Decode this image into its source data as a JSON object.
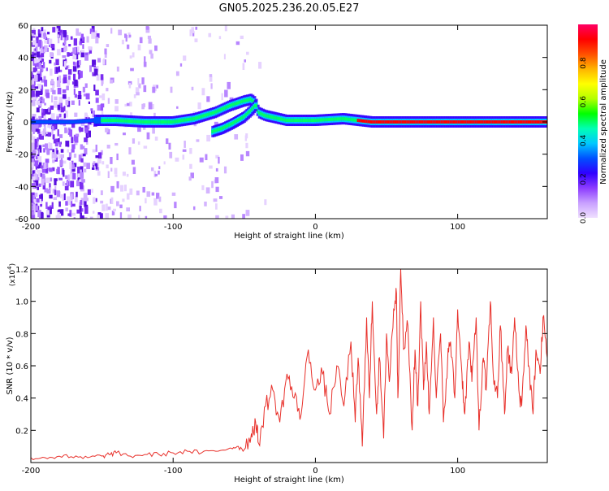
{
  "title": "GN05.2025.236.20.05.E27",
  "chart_data": [
    {
      "type": "heatmap",
      "xlabel": "Height of straight line (km)",
      "ylabel": "Frequency (Hz)",
      "xlim": [
        -200,
        163
      ],
      "ylim": [
        -60,
        60
      ],
      "xticks": [
        -200,
        -100,
        0,
        100
      ],
      "yticks": [
        60,
        40,
        20,
        0,
        -20,
        -40,
        -60
      ],
      "colorbar": {
        "label": "Normalized spectral amplitude",
        "range": [
          0.0,
          1.0
        ],
        "ticks": [
          "0.0",
          "0.2",
          "0.4",
          "0.6",
          "0.8"
        ],
        "colors": [
          "#f0e0ff",
          "#c8a0ff",
          "#8c3cff",
          "#3000ff",
          "#0050ff",
          "#00c8ff",
          "#00ffb4",
          "#00ff00",
          "#b4ff00",
          "#ffff00",
          "#ffb400",
          "#ff5000",
          "#ff0000",
          "#ff0064"
        ]
      },
      "ridge": {
        "x": [
          -200,
          -185,
          -170,
          -155,
          -140,
          -120,
          -100,
          -85,
          -70,
          -60,
          -50,
          -45,
          -42,
          -40,
          -35,
          -30,
          -20,
          -10,
          0,
          20,
          40,
          60,
          80,
          100,
          130,
          163
        ],
        "freq": [
          0,
          0,
          0,
          1,
          1,
          0,
          0,
          2,
          6,
          10,
          13,
          14,
          12,
          6,
          4,
          3,
          1,
          1,
          1,
          2,
          0,
          0,
          0,
          0,
          0,
          0
        ]
      },
      "secondary_ridge": {
        "x": [
          -72,
          -65,
          -58,
          -50,
          -45,
          -42
        ],
        "freq": [
          -6,
          -4,
          -1,
          3,
          7,
          10
        ]
      }
    },
    {
      "type": "line",
      "xlabel": "Height of straight line (km)",
      "ylabel": "SNR (10 * v/v)",
      "scale_label": "(x10",
      "scale_exp": "4",
      "xlim": [
        -200,
        163
      ],
      "ylim": [
        0,
        1.2
      ],
      "xticks": [
        -200,
        -100,
        0,
        100
      ],
      "yticks": [
        "0.2",
        "0.4",
        "0.6",
        "0.8",
        "1.0",
        "1.2"
      ],
      "color": "#e8302a",
      "x": [
        -200,
        -190,
        -180,
        -170,
        -160,
        -150,
        -145,
        -140,
        -130,
        -120,
        -110,
        -100,
        -90,
        -80,
        -70,
        -60,
        -55,
        -50,
        -45,
        -42,
        -40,
        -35,
        -30,
        -25,
        -20,
        -15,
        -10,
        -5,
        0,
        5,
        10,
        15,
        20,
        25,
        28,
        30,
        33,
        36,
        38,
        40,
        43,
        45,
        48,
        50,
        52,
        55,
        57,
        58,
        60,
        62,
        65,
        68,
        70,
        72,
        74,
        76,
        78,
        80,
        83,
        85,
        88,
        90,
        93,
        95,
        98,
        100,
        103,
        105,
        108,
        110,
        113,
        115,
        118,
        120,
        123,
        125,
        128,
        130,
        133,
        135,
        138,
        140,
        143,
        145,
        148,
        150,
        153,
        155,
        158,
        160,
        163
      ],
      "values": [
        0.03,
        0.03,
        0.04,
        0.03,
        0.03,
        0.04,
        0.05,
        0.06,
        0.04,
        0.05,
        0.05,
        0.06,
        0.07,
        0.06,
        0.07,
        0.09,
        0.1,
        0.08,
        0.18,
        0.25,
        0.12,
        0.35,
        0.45,
        0.25,
        0.55,
        0.4,
        0.3,
        0.7,
        0.45,
        0.55,
        0.3,
        0.6,
        0.35,
        0.75,
        0.25,
        0.65,
        0.1,
        0.9,
        0.4,
        1.0,
        0.3,
        0.65,
        0.15,
        0.8,
        0.5,
        0.95,
        1.05,
        0.4,
        1.2,
        0.7,
        0.85,
        0.2,
        0.7,
        0.35,
        1.0,
        0.45,
        0.75,
        0.3,
        0.9,
        0.4,
        0.8,
        0.25,
        0.65,
        0.75,
        0.4,
        0.95,
        0.55,
        0.3,
        0.75,
        0.5,
        0.9,
        0.2,
        0.65,
        0.45,
        1.0,
        0.55,
        0.4,
        0.85,
        0.3,
        0.7,
        0.55,
        0.9,
        0.45,
        0.35,
        0.85,
        0.6,
        0.3,
        0.7,
        0.55,
        0.9,
        0.65
      ]
    }
  ]
}
